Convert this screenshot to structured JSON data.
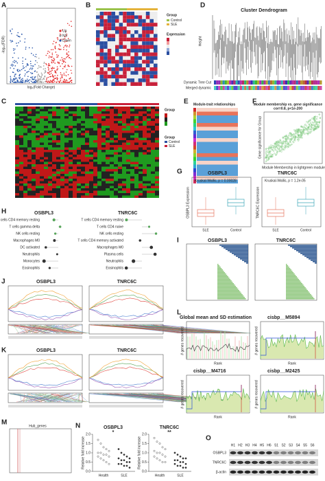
{
  "panels": {
    "A": {
      "label": "A",
      "legend": [
        "Up",
        "NS",
        "Down"
      ],
      "x_label": "log₂(Fold Change)",
      "y_label": "-log₁₀(FDR)"
    },
    "B": {
      "label": "B",
      "legend_title": "Group",
      "groups": [
        "Control",
        "SLE"
      ],
      "scale_title": "Expression"
    },
    "C": {
      "label": "C",
      "legend_title": "Group",
      "groups": [
        "Control",
        "SLE"
      ]
    },
    "D": {
      "label": "D",
      "title": "Cluster Dendrogram",
      "y_label": "Height",
      "rows": [
        "Dynamic Tree Cut",
        "Merged dynamic"
      ]
    },
    "E": {
      "label": "E",
      "title": "Module-trait relationships"
    },
    "F": {
      "label": "F",
      "title": "Module membership vs. gene significance",
      "subtitle": "cor=0.8, p<1e-200",
      "x_label": "Module Membership in lightgreen module",
      "y_label": "Gene significance for Group"
    },
    "G": {
      "label": "G",
      "plots": [
        {
          "title": "OSBPL3",
          "test": "Kruskal-Wallis, p = 0.00028",
          "y_label": "OSBPL3 Expression",
          "groups": [
            "SLE",
            "Control"
          ]
        },
        {
          "title": "TNRC6C",
          "test": "Kruskal-Wallis, p = 1.2e-05",
          "y_label": "TNRC6C Expression",
          "groups": [
            "SLE",
            "Control"
          ]
        }
      ]
    },
    "H": {
      "label": "H",
      "plots": [
        {
          "title": "OSBPL3",
          "rows": [
            "T cells CD4 memory resting",
            "T cells gamma delta",
            "NK cells resting",
            "Macrophages M0",
            "DC activated",
            "Neutrophils",
            "Monocytes",
            "Eosinophils"
          ]
        },
        {
          "title": "TNRC6C",
          "rows": [
            "T cells CD4 memory resting",
            "T cells CD4 naive",
            "NK cells resting",
            "T cells CD4 memory activated",
            "Macrophages M0",
            "Plasma cells",
            "Neutrophils",
            "Eosinophils"
          ]
        }
      ]
    },
    "I": {
      "label": "I",
      "titles": [
        "OSBPL3",
        "TNRC6C"
      ]
    },
    "J": {
      "label": "J",
      "titles": [
        "OSBPL3",
        "TNRC6C"
      ]
    },
    "K": {
      "label": "K",
      "titles": [
        "OSBPL3",
        "TNRC6C"
      ]
    },
    "L": {
      "label": "L",
      "titles": [
        "Global mean and SD estimation",
        "cisbp__M5894",
        "cisbp__M4716",
        "cisbp__M2425"
      ],
      "x_label": "Rank",
      "y_label": "# genes recovered"
    },
    "M": {
      "label": "M",
      "title": "Hub_genes"
    },
    "N": {
      "label": "N",
      "y_label": "Relative fold increase",
      "groups": [
        "Health",
        "SLE"
      ],
      "ylim": [
        0,
        2
      ],
      "yticks": [
        {
          "value": 0,
          "label": "0.0"
        },
        {
          "value": 0.5,
          "label": "0.5"
        },
        {
          "value": 1,
          "label": "1.0"
        },
        {
          "value": 1.5,
          "label": "1.5"
        },
        {
          "value": 2,
          "label": "2.0"
        }
      ],
      "plots": [
        {
          "title": "OSBPL3",
          "sig": "*",
          "values": [
            [
              1.7,
              1.5,
              1.3,
              1.2,
              1.1,
              1.0,
              1.0,
              0.9,
              0.9,
              0.8,
              0.8,
              0.7,
              0.6,
              0.5,
              0.4
            ],
            [
              1.2,
              1.0,
              0.9,
              0.8,
              0.7,
              0.7,
              0.6,
              0.6,
              0.5,
              0.5,
              0.4,
              0.4,
              0.3,
              0.3,
              0.2
            ]
          ]
        },
        {
          "title": "TNRC6C",
          "sig": "**",
          "values": [
            [
              1.8,
              1.6,
              1.5,
              1.3,
              1.2,
              1.1,
              1.0,
              1.0,
              0.9,
              0.8,
              0.8,
              0.7,
              0.6,
              0.5,
              0.5
            ],
            [
              1.0,
              0.9,
              0.8,
              0.7,
              0.7,
              0.6,
              0.6,
              0.5,
              0.5,
              0.4,
              0.4,
              0.3,
              0.3,
              0.2,
              0.2
            ]
          ]
        }
      ]
    },
    "O": {
      "label": "O",
      "lanes": [
        "H1",
        "H2",
        "H3",
        "H4",
        "H5",
        "H6",
        "S1",
        "S2",
        "S3",
        "S4",
        "S5",
        "S6"
      ],
      "rows": [
        "OSBPL3",
        "TNRC6C",
        "β-actin"
      ]
    }
  }
}
